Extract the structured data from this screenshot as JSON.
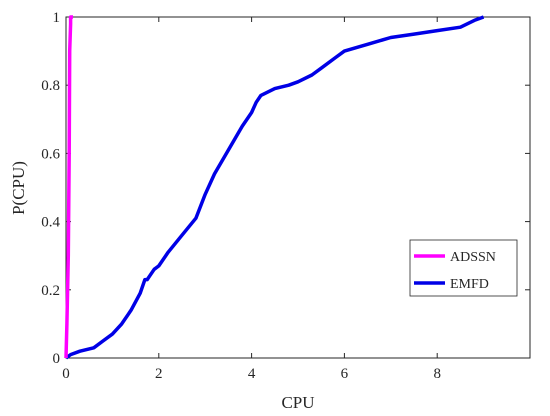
{
  "chart_data": {
    "type": "line",
    "xlabel": "CPU",
    "ylabel": "P(CPU)",
    "xlim": [
      0,
      10
    ],
    "ylim": [
      0,
      1
    ],
    "xticks": [
      0,
      2,
      4,
      6,
      8
    ],
    "yticks": [
      0,
      0.2,
      0.4,
      0.6,
      0.8,
      1
    ],
    "xtick_labels": [
      "0",
      "2",
      "4",
      "6",
      "8"
    ],
    "ytick_labels": [
      "0",
      "0.2",
      "0.4",
      "0.6",
      "0.8",
      "1"
    ],
    "grid": false,
    "legend_position": "lower-right",
    "series": [
      {
        "name": "ADSSN",
        "color": "#ff00ff",
        "x": [
          0,
          0.02,
          0.05,
          0.07,
          0.08,
          0.1,
          0.1,
          0.12,
          0.15
        ],
        "y": [
          0,
          0.1,
          0.3,
          0.6,
          0.9,
          0.98,
          1.0,
          1.0,
          1.0
        ]
      },
      {
        "name": "EMFD",
        "color": "#0000e6",
        "x": [
          0,
          0.1,
          0.3,
          0.6,
          0.8,
          1.0,
          1.2,
          1.4,
          1.6,
          1.7,
          1.75,
          1.8,
          1.9,
          2.0,
          2.2,
          2.5,
          2.8,
          3.0,
          3.2,
          3.5,
          3.8,
          4.0,
          4.1,
          4.2,
          4.5,
          4.8,
          5.0,
          5.3,
          5.5,
          5.8,
          6.0,
          6.5,
          7.0,
          7.5,
          8.0,
          8.5,
          8.8,
          9.0
        ],
        "y": [
          0,
          0.01,
          0.02,
          0.03,
          0.05,
          0.07,
          0.1,
          0.14,
          0.19,
          0.23,
          0.23,
          0.24,
          0.26,
          0.27,
          0.31,
          0.36,
          0.41,
          0.48,
          0.54,
          0.61,
          0.68,
          0.72,
          0.75,
          0.77,
          0.79,
          0.8,
          0.81,
          0.83,
          0.85,
          0.88,
          0.9,
          0.92,
          0.94,
          0.95,
          0.96,
          0.97,
          0.99,
          1.0
        ]
      }
    ]
  }
}
